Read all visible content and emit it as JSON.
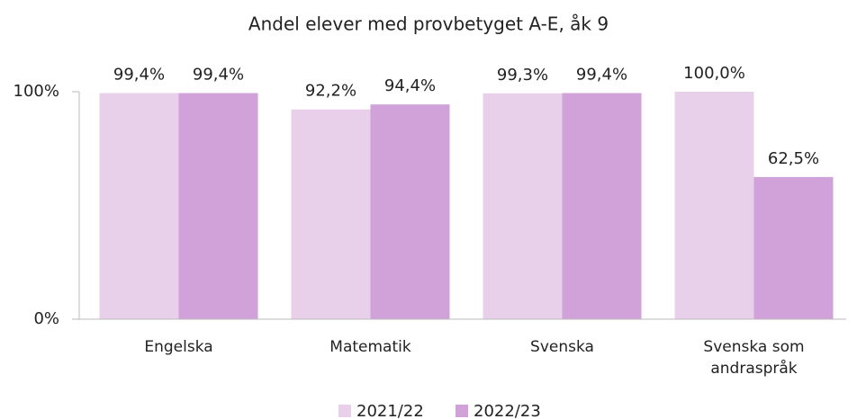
{
  "chart_data": {
    "type": "bar",
    "title": "Andel elever med provbetyget A-E, åk 9",
    "categories": [
      "Engelska",
      "Matematik",
      "Svenska",
      "Svenska som andraspråk"
    ],
    "series": [
      {
        "name": "2021/22",
        "color": "#e8d0ea",
        "values": [
          99.4,
          92.2,
          99.3,
          100.0
        ],
        "value_labels": [
          "99,4%",
          "92,2%",
          "99,3%",
          "100,0%"
        ]
      },
      {
        "name": "2022/23",
        "color": "#d1a2d9",
        "values": [
          99.4,
          94.4,
          99.4,
          62.5
        ],
        "value_labels": [
          "99,4%",
          "94,4%",
          "99,4%",
          "62,5%"
        ]
      }
    ],
    "ylim": [
      0,
      100
    ],
    "yticks": [
      {
        "value": 0,
        "label": "0%"
      },
      {
        "value": 100,
        "label": "100%"
      }
    ],
    "legend": "bottom"
  }
}
